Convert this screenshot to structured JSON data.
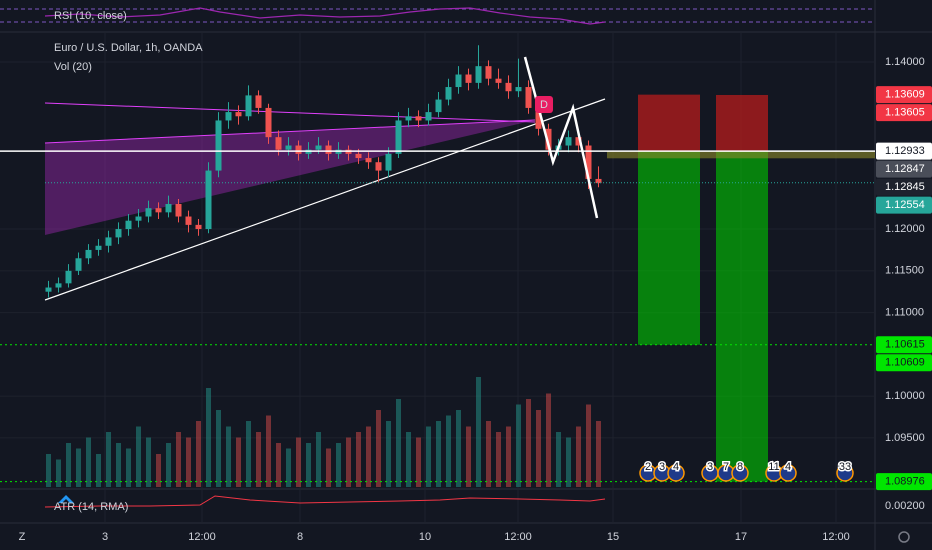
{
  "header": {
    "symbol": "Euro / U.S. Dollar, 1h, OANDA",
    "volume_label": "Vol (20)"
  },
  "rsi": {
    "label": "RSI (10, close)"
  },
  "atr": {
    "label": "ATR (14, RMA)",
    "tick": {
      "value": 0.002,
      "label": "0.00200"
    }
  },
  "price_axis": {
    "ylim": [
      1.089,
      1.14347
    ],
    "yticks": [
      {
        "value": 1.14,
        "label": "1.14000"
      },
      {
        "value": 1.12,
        "label": "1.12000"
      },
      {
        "value": 1.115,
        "label": "1.11500"
      },
      {
        "value": 1.11,
        "label": "1.11000"
      },
      {
        "value": 1.1,
        "label": "1.10000"
      },
      {
        "value": 1.095,
        "label": "1.09500"
      }
    ]
  },
  "price_tags": [
    {
      "value": 1.13609,
      "label": "1.13609",
      "color": "#f23645"
    },
    {
      "value": 1.13605,
      "label": "1.13605",
      "color": "#f23645"
    },
    {
      "value": 1.12933,
      "label": "1.12933",
      "color": "#ffffff"
    },
    {
      "value": 1.12847,
      "label": "1.12847",
      "color": "#4a4e59"
    },
    {
      "value": 1.12845,
      "label": "1.12845",
      "color": "#1e222d"
    },
    {
      "value": 1.12554,
      "label": "1.12554",
      "color": "#26a69a"
    },
    {
      "value": 1.10615,
      "label": "1.10615",
      "color": "#00e600"
    },
    {
      "value": 1.10609,
      "label": "1.10609",
      "color": "#00e600"
    },
    {
      "value": 1.08976,
      "label": "1.08976",
      "color": "#00e600"
    }
  ],
  "time_axis": [
    "3",
    "12:00",
    "8",
    "10",
    "12:00",
    "15",
    "17",
    "12:00"
  ],
  "drawing_label": "D",
  "events": [
    "2",
    "3",
    "4",
    "3",
    "7",
    "8",
    "11",
    "4",
    "33"
  ],
  "toolbar": {
    "left": "Z"
  },
  "candles": [
    [
      1.1125,
      1.1138,
      1.1118,
      1.113
    ],
    [
      1.113,
      1.1142,
      1.1124,
      1.1135
    ],
    [
      1.1135,
      1.1158,
      1.113,
      1.115
    ],
    [
      1.115,
      1.1172,
      1.1145,
      1.1165
    ],
    [
      1.1165,
      1.1182,
      1.1158,
      1.1175
    ],
    [
      1.1175,
      1.1188,
      1.1168,
      1.118
    ],
    [
      1.118,
      1.1198,
      1.1172,
      1.119
    ],
    [
      1.119,
      1.1208,
      1.1182,
      1.12
    ],
    [
      1.12,
      1.1218,
      1.1192,
      1.121
    ],
    [
      1.121,
      1.1224,
      1.1202,
      1.1215
    ],
    [
      1.1215,
      1.1234,
      1.1208,
      1.1225
    ],
    [
      1.1225,
      1.1232,
      1.1212,
      1.122
    ],
    [
      1.122,
      1.124,
      1.1214,
      1.123
    ],
    [
      1.123,
      1.1236,
      1.1208,
      1.1215
    ],
    [
      1.1215,
      1.1222,
      1.1196,
      1.1205
    ],
    [
      1.1205,
      1.1212,
      1.1192,
      1.12
    ],
    [
      1.12,
      1.128,
      1.1195,
      1.127
    ],
    [
      1.127,
      1.134,
      1.1262,
      1.133
    ],
    [
      1.133,
      1.1352,
      1.132,
      1.134
    ],
    [
      1.134,
      1.1348,
      1.1325,
      1.1335
    ],
    [
      1.1335,
      1.1372,
      1.133,
      1.136
    ],
    [
      1.136,
      1.1366,
      1.1338,
      1.1345
    ],
    [
      1.1345,
      1.135,
      1.1302,
      1.131
    ],
    [
      1.131,
      1.1318,
      1.1288,
      1.1295
    ],
    [
      1.1295,
      1.131,
      1.1288,
      1.13
    ],
    [
      1.13,
      1.1306,
      1.1282,
      1.129
    ],
    [
      1.129,
      1.1304,
      1.1284,
      1.1295
    ],
    [
      1.1295,
      1.131,
      1.129,
      1.13
    ],
    [
      1.13,
      1.1306,
      1.1282,
      1.129
    ],
    [
      1.129,
      1.1304,
      1.1284,
      1.1295
    ],
    [
      1.1295,
      1.13,
      1.1282,
      1.129
    ],
    [
      1.129,
      1.1296,
      1.1278,
      1.1285
    ],
    [
      1.1285,
      1.1292,
      1.1272,
      1.128
    ],
    [
      1.128,
      1.1286,
      1.1255,
      1.127
    ],
    [
      1.127,
      1.1298,
      1.1262,
      1.129
    ],
    [
      1.129,
      1.134,
      1.1285,
      1.133
    ],
    [
      1.133,
      1.1345,
      1.1322,
      1.1335
    ],
    [
      1.1335,
      1.1342,
      1.1322,
      1.133
    ],
    [
      1.133,
      1.135,
      1.1324,
      1.134
    ],
    [
      1.134,
      1.1364,
      1.1334,
      1.1355
    ],
    [
      1.1355,
      1.138,
      1.1348,
      1.137
    ],
    [
      1.137,
      1.1395,
      1.1362,
      1.1385
    ],
    [
      1.1385,
      1.1392,
      1.1366,
      1.1375
    ],
    [
      1.1375,
      1.142,
      1.1368,
      1.1395
    ],
    [
      1.1395,
      1.1402,
      1.1372,
      1.138
    ],
    [
      1.138,
      1.1392,
      1.1368,
      1.1375
    ],
    [
      1.1375,
      1.1384,
      1.1356,
      1.1365
    ],
    [
      1.1365,
      1.1404,
      1.1358,
      1.137
    ],
    [
      1.137,
      1.1378,
      1.1338,
      1.1345
    ],
    [
      1.1345,
      1.1352,
      1.1312,
      1.132
    ],
    [
      1.132,
      1.1326,
      1.1288,
      1.1295
    ],
    [
      1.1295,
      1.1308,
      1.1288,
      1.13
    ],
    [
      1.13,
      1.1318,
      1.1292,
      1.131
    ],
    [
      1.131,
      1.1316,
      1.1292,
      1.13
    ],
    [
      1.13,
      1.1306,
      1.1248,
      1.126
    ],
    [
      1.126,
      1.1275,
      1.125,
      1.1255
    ]
  ],
  "volume": [
    30,
    25,
    40,
    35,
    45,
    30,
    50,
    40,
    35,
    55,
    45,
    30,
    40,
    50,
    45,
    60,
    90,
    70,
    55,
    45,
    60,
    50,
    65,
    40,
    35,
    45,
    40,
    50,
    35,
    40,
    45,
    50,
    55,
    70,
    60,
    80,
    50,
    45,
    55,
    60,
    65,
    70,
    55,
    100,
    60,
    50,
    55,
    75,
    80,
    70,
    85,
    50,
    45,
    55,
    75,
    60
  ]
}
